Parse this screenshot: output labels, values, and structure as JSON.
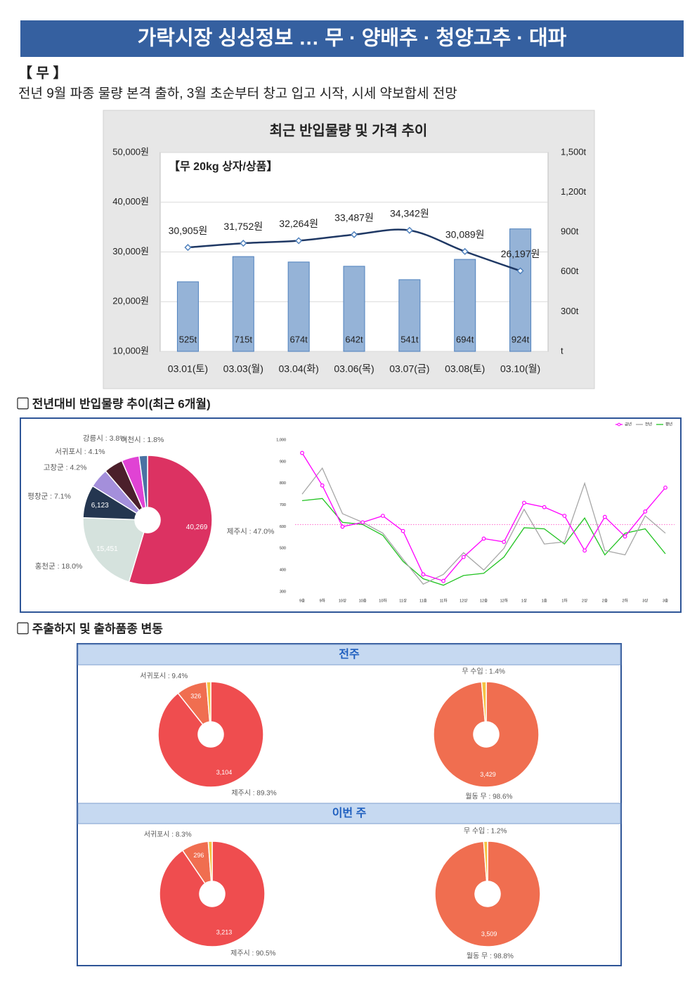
{
  "header": {
    "title": "가락시장 싱싱정보 …  무 · 양배추 · 청양고추 · 대파"
  },
  "section": {
    "label": "【 무 】",
    "summary": "전년 9월 파종 물량 본격 출하, 3월 초순부터 창고 입고 시작, 시세 약보합세 전망"
  },
  "headings": [
    "▢ 전년대비 반입물량 추이(최근 6개월)",
    "▢ 주출하지 및 출하품종 변동"
  ],
  "panels": [
    "전주",
    "이번 주"
  ],
  "chart_data": [
    {
      "type": "combo",
      "title": "최근 반입물량 및 가격 추이",
      "annotation": "【무 20kg 상자/상품】",
      "categories": [
        "03.01(토)",
        "03.03(월)",
        "03.04(화)",
        "03.06(목)",
        "03.07(금)",
        "03.08(토)",
        "03.10(월)"
      ],
      "series": [
        {
          "type": "bar",
          "axis": "y2",
          "color": "#95b3d7",
          "values": [
            525,
            715,
            674,
            642,
            541,
            694,
            924
          ],
          "value_labels": [
            "525t",
            "715t",
            "674t",
            "642t",
            "541t",
            "694t",
            "924t"
          ]
        },
        {
          "type": "line",
          "color": "#1f3864",
          "values": [
            30905,
            31752,
            32264,
            33487,
            34342,
            30089,
            26197
          ],
          "value_labels": [
            "30,905원",
            "31,752원",
            "32,264원",
            "33,487원",
            "34,342원",
            "30,089원",
            "26,197원"
          ]
        }
      ],
      "ylim": [
        10000,
        50000
      ],
      "yticks": [
        {
          "value": 10000,
          "label": "10,000원"
        },
        {
          "value": 20000,
          "label": "20,000원"
        },
        {
          "value": 30000,
          "label": "30,000원"
        },
        {
          "value": 40000,
          "label": "40,000원"
        },
        {
          "value": 50000,
          "label": "50,000원"
        }
      ],
      "y2lim": [
        0,
        1500
      ],
      "y2ticks": [
        {
          "value": 0,
          "label": "t"
        },
        {
          "value": 300,
          "label": "300t"
        },
        {
          "value": 600,
          "label": "600t"
        },
        {
          "value": 900,
          "label": "900t"
        },
        {
          "value": 1200,
          "label": "1,200t"
        },
        {
          "value": 1500,
          "label": "1,500t"
        }
      ],
      "grid": true
    },
    {
      "type": "donut",
      "categories": [
        "제주시 : 47.0%",
        "홍천군 : 18.0%",
        "평창군 : 7.1%",
        "고창군 : 4.2%",
        "서귀포시 : 4.1%",
        "강릉시 : 3.8%",
        "이천시 : 1.8%"
      ],
      "values": [
        47.0,
        18.0,
        7.1,
        4.2,
        4.1,
        3.8,
        1.8
      ],
      "count_labels": [
        "40,269",
        "15,451",
        "6,123",
        null,
        null,
        null,
        null
      ],
      "colors": [
        "#dc3262",
        "#d5e2dd",
        "#243650",
        "#a48fdb",
        "#4b1f2b",
        "#e043d4",
        "#4a72a3"
      ]
    },
    {
      "type": "line",
      "legend": "top-right",
      "grid": false,
      "categories": [
        "9중",
        "9하",
        "10상",
        "10중",
        "10하",
        "11상",
        "11중",
        "11하",
        "12상",
        "12중",
        "12하",
        "1상",
        "1중",
        "1하",
        "2상",
        "2중",
        "2하",
        "3상",
        "3중"
      ],
      "series": [
        {
          "name": "금년",
          "color": "#ff00ff",
          "markers": true,
          "values": [
            940,
            790,
            600,
            620,
            650,
            580,
            380,
            350,
            460,
            545,
            530,
            710,
            690,
            650,
            490,
            645,
            555,
            670,
            780
          ]
        },
        {
          "name": "전년",
          "color": "#a6a6a6",
          "markers": false,
          "values": [
            750,
            870,
            660,
            620,
            570,
            450,
            335,
            380,
            480,
            400,
            500,
            680,
            520,
            530,
            800,
            490,
            470,
            650,
            570
          ]
        },
        {
          "name": "평년",
          "color": "#22c322",
          "markers": false,
          "values": [
            720,
            730,
            620,
            610,
            560,
            440,
            360,
            330,
            375,
            385,
            460,
            595,
            590,
            520,
            640,
            470,
            570,
            590,
            475
          ]
        }
      ],
      "hline": 610,
      "hline_color": "#ff66cc",
      "ylim": [
        300,
        1000
      ],
      "yticks": [
        300,
        400,
        500,
        600,
        700,
        800,
        900,
        {
          "value": 1000,
          "label": "1,000"
        }
      ]
    },
    {
      "type": "donut",
      "categories": [
        "제주시 : 89.3%",
        "서귀포시 : 9.4%",
        null
      ],
      "values": [
        89.3,
        9.4,
        1.3
      ],
      "count_labels": [
        "3,104",
        "326",
        null
      ],
      "colors": [
        "#ef4d4f",
        "#f06e50",
        "#f5c242"
      ]
    },
    {
      "type": "donut",
      "categories": [
        "월동 무 : 98.6%",
        "무 수입 : 1.4%"
      ],
      "values": [
        98.6,
        1.4
      ],
      "count_labels": [
        "3,429",
        null
      ],
      "colors": [
        "#f06e50",
        "#f5c242"
      ]
    },
    {
      "type": "donut",
      "categories": [
        "제주시 : 90.5%",
        "서귀포시 : 8.3%",
        null
      ],
      "values": [
        90.5,
        8.3,
        1.2
      ],
      "count_labels": [
        "3,213",
        "296",
        null
      ],
      "colors": [
        "#ef4d4f",
        "#f06e50",
        "#f5c242"
      ]
    },
    {
      "type": "donut",
      "categories": [
        "월동 무 : 98.8%",
        "무 수입 : 1.2%"
      ],
      "values": [
        98.8,
        1.2
      ],
      "count_labels": [
        "3,509",
        null
      ],
      "colors": [
        "#f06e50",
        "#f5c242"
      ]
    }
  ]
}
